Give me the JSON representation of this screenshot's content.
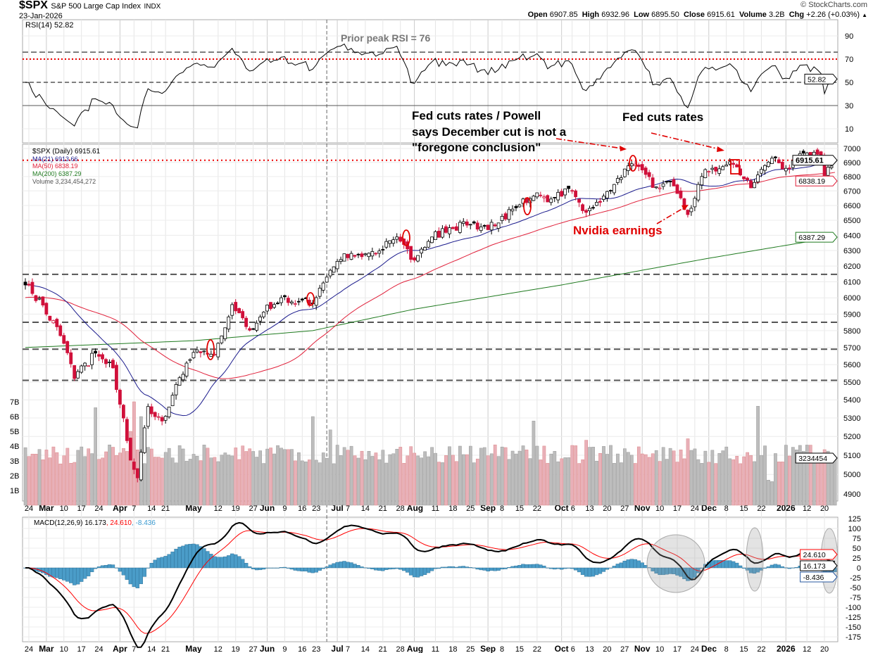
{
  "header": {
    "symbol": "$SPX",
    "name": "S&P 500 Large Cap Index",
    "exchange": "INDX",
    "date": "23-Jan-2026",
    "copyright": "© StockCharts.com",
    "ohlc": {
      "open_label": "Open",
      "open": "6907.85",
      "high_label": "High",
      "high": "6932.96",
      "low_label": "Low",
      "low": "6895.50",
      "close_label": "Close",
      "close": "6915.61",
      "volume_label": "Volume",
      "volume": "3.2B",
      "chg_label": "Chg",
      "chg": "+2.26 (+0.03%)",
      "chg_arrow": "▲"
    }
  },
  "legend": {
    "rsi": "RSI(14) 52.82",
    "price": "$SPX (Daily) 6915.61",
    "ma21": "MA(21) 6913.66",
    "ma50": "MA(50) 6838.19",
    "ma200": "MA(200) 6387.29",
    "volume": "Volume 3,234,454,272",
    "macd_main": "MACD(12,26,9) 16.173",
    "macd_signal": ", 24.610",
    "macd_hist": ", -8.436"
  },
  "value_tags": {
    "close": "6915.61",
    "ma50": "6838.19",
    "ma200": "6387.29",
    "volume": "3234454",
    "rsi": "52.82",
    "macd": "16.173",
    "signal": "24.610",
    "hist": "-8.436"
  },
  "annotations": {
    "prior_peak": "Prior peak RSI = 76",
    "fed1_line1": "Fed cuts rates / Powell",
    "fed1_line2": "says December cut is not a",
    "fed1_line3": "\"foregone conclusion\"",
    "fed2": "Fed cuts rates",
    "nvidia": "Nvidia earnings"
  },
  "colors": {
    "up": "#000000",
    "down": "#d0103a",
    "ma21": "#1a1a8c",
    "ma50": "#e0203a",
    "ma200": "#1f7a1f",
    "vol_up": "#bdbdbd",
    "vol_down": "#e8b0b8",
    "macd": "#000000",
    "signal": "#ff0000",
    "hist": "#4a9cc8",
    "annot": "#e00000"
  },
  "chart_data": {
    "type": "candlestick",
    "title": "$SPX S&P 500 Large Cap Index",
    "start": "2025-02-21",
    "end": "2026-01-23",
    "holidays": [
      "2025-04-18",
      "2025-05-26",
      "2025-06-19",
      "2025-07-04",
      "2025-09-01",
      "2025-11-27",
      "2025-12-25",
      "2026-01-01",
      "2026-01-19"
    ],
    "weekly_closes": [
      [
        "2025-02-21",
        6080
      ],
      [
        "2025-02-28",
        5955
      ],
      [
        "2025-03-07",
        5770
      ],
      [
        "2025-03-13",
        5520
      ],
      [
        "2025-03-21",
        5667
      ],
      [
        "2025-03-28",
        5581
      ],
      [
        "2025-04-04",
        5074
      ],
      [
        "2025-04-08",
        4982
      ],
      [
        "2025-04-11",
        5363
      ],
      [
        "2025-04-17",
        5283
      ],
      [
        "2025-04-25",
        5525
      ],
      [
        "2025-05-02",
        5686
      ],
      [
        "2025-05-09",
        5660
      ],
      [
        "2025-05-16",
        5958
      ],
      [
        "2025-05-23",
        5803
      ],
      [
        "2025-05-30",
        5912
      ],
      [
        "2025-06-06",
        6000
      ],
      [
        "2025-06-13",
        5977
      ],
      [
        "2025-06-20",
        5967
      ],
      [
        "2025-06-27",
        6173
      ],
      [
        "2025-07-03",
        6279
      ],
      [
        "2025-07-11",
        6260
      ],
      [
        "2025-07-18",
        6297
      ],
      [
        "2025-07-25",
        6389
      ],
      [
        "2025-08-01",
        6238
      ],
      [
        "2025-08-08",
        6389
      ],
      [
        "2025-08-15",
        6450
      ],
      [
        "2025-08-22",
        6467
      ],
      [
        "2025-08-29",
        6460
      ],
      [
        "2025-09-05",
        6482
      ],
      [
        "2025-09-12",
        6584
      ],
      [
        "2025-09-19",
        6664
      ],
      [
        "2025-09-26",
        6644
      ],
      [
        "2025-10-03",
        6716
      ],
      [
        "2025-10-10",
        6553
      ],
      [
        "2025-10-17",
        6664
      ],
      [
        "2025-10-24",
        6792
      ],
      [
        "2025-10-29",
        6890
      ],
      [
        "2025-11-07",
        6728
      ],
      [
        "2025-11-14",
        6734
      ],
      [
        "2025-11-20",
        6538
      ],
      [
        "2025-11-28",
        6849
      ],
      [
        "2025-12-05",
        6870
      ],
      [
        "2025-12-10",
        6886
      ],
      [
        "2025-12-17",
        6721
      ],
      [
        "2025-12-26",
        6930
      ],
      [
        "2026-01-02",
        6858
      ],
      [
        "2026-01-09",
        6966
      ],
      [
        "2026-01-16",
        6940
      ],
      [
        "2026-01-20",
        6797
      ],
      [
        "2026-01-23",
        6915.61
      ]
    ],
    "last_ohlc": {
      "open": 6907.85,
      "high": 6932.96,
      "low": 6895.5,
      "close": 6915.61,
      "volume_B": 3.23
    },
    "ma200_anchors": [
      [
        "2025-02-21",
        5700
      ],
      [
        "2025-05-01",
        5740
      ],
      [
        "2025-06-20",
        5800
      ],
      [
        "2025-08-01",
        5930
      ],
      [
        "2025-10-01",
        6080
      ],
      [
        "2025-12-01",
        6250
      ],
      [
        "2026-01-23",
        6387.29
      ]
    ],
    "volume_spikes_B": [
      [
        "2025-03-21",
        6.6
      ],
      [
        "2025-04-04",
        5.0
      ],
      [
        "2025-04-07",
        7.0
      ],
      [
        "2025-04-09",
        6.0
      ],
      [
        "2025-06-20",
        6.0
      ],
      [
        "2025-06-27",
        5.1
      ],
      [
        "2025-09-19",
        5.7
      ],
      [
        "2025-10-10",
        4.4
      ],
      [
        "2025-11-20",
        4.5
      ],
      [
        "2025-12-19",
        6.7
      ],
      [
        "2025-12-24",
        1.7
      ],
      [
        "2025-12-26",
        1.6
      ]
    ],
    "price_axis": {
      "scale": "log",
      "min": 4800,
      "max": 7100,
      "ticks": [
        4900,
        5000,
        5100,
        5200,
        5300,
        5400,
        5500,
        5600,
        5700,
        5800,
        5900,
        6000,
        6100,
        6200,
        6300,
        6400,
        6500,
        6600,
        6700,
        6800,
        6900,
        7000
      ]
    },
    "volume_axis": {
      "ticks": [
        "1B",
        "2B",
        "3B",
        "4B",
        "5B",
        "6B",
        "7B"
      ]
    },
    "rsi_axis": {
      "ticks": [
        10,
        30,
        50,
        70,
        90
      ],
      "lines": {
        "prior_peak": 76,
        "overbought": 70,
        "mid": 50,
        "oversold": 30
      }
    },
    "macd_axis": {
      "ticks": [
        125,
        100,
        75,
        50,
        25,
        0,
        -25,
        -50,
        -75,
        -100,
        -125,
        -150,
        -175
      ]
    },
    "support_levels": [
      6147,
      5850,
      5690,
      5510
    ],
    "current_level": 6915.61,
    "marker_date": "2025-06-26",
    "x_labels": [
      [
        "24",
        "2025-02-24",
        0
      ],
      [
        "Mar",
        "2025-03-03",
        1
      ],
      [
        "10",
        "2025-03-10",
        0
      ],
      [
        "17",
        "2025-03-17",
        0
      ],
      [
        "24",
        "2025-03-24",
        0
      ],
      [
        "Apr",
        "2025-04-01",
        1
      ],
      [
        "7",
        "2025-04-07",
        0
      ],
      [
        "14",
        "2025-04-14",
        0
      ],
      [
        "21",
        "2025-04-21",
        0
      ],
      [
        "May",
        "2025-05-01",
        1
      ],
      [
        "12",
        "2025-05-12",
        0
      ],
      [
        "19",
        "2025-05-19",
        0
      ],
      [
        "27",
        "2025-05-27",
        0
      ],
      [
        "Jun",
        "2025-06-02",
        1
      ],
      [
        "9",
        "2025-06-09",
        0
      ],
      [
        "16",
        "2025-06-16",
        0
      ],
      [
        "23",
        "2025-06-23",
        0
      ],
      [
        "Jul",
        "2025-07-01",
        1
      ],
      [
        "7",
        "2025-07-07",
        0
      ],
      [
        "14",
        "2025-07-14",
        0
      ],
      [
        "21",
        "2025-07-21",
        0
      ],
      [
        "28",
        "2025-07-28",
        0
      ],
      [
        "Aug",
        "2025-08-01",
        1
      ],
      [
        "11",
        "2025-08-11",
        0
      ],
      [
        "18",
        "2025-08-18",
        0
      ],
      [
        "25",
        "2025-08-25",
        0
      ],
      [
        "Sep",
        "2025-09-02",
        1
      ],
      [
        "8",
        "2025-09-08",
        0
      ],
      [
        "15",
        "2025-09-15",
        0
      ],
      [
        "22",
        "2025-09-22",
        0
      ],
      [
        "Oct",
        "2025-10-01",
        1
      ],
      [
        "6",
        "2025-10-06",
        0
      ],
      [
        "13",
        "2025-10-13",
        0
      ],
      [
        "20",
        "2025-10-20",
        0
      ],
      [
        "27",
        "2025-10-27",
        0
      ],
      [
        "Nov",
        "2025-11-03",
        1
      ],
      [
        "10",
        "2025-11-10",
        0
      ],
      [
        "17",
        "2025-11-17",
        0
      ],
      [
        "24",
        "2025-11-24",
        0
      ],
      [
        "Dec",
        "2025-12-01",
        1
      ],
      [
        "8",
        "2025-12-08",
        0
      ],
      [
        "15",
        "2025-12-15",
        0
      ],
      [
        "22",
        "2025-12-22",
        0
      ],
      [
        "2026",
        "2026-01-02",
        1
      ],
      [
        "12",
        "2026-01-12",
        0
      ],
      [
        "20",
        "2026-01-20",
        0
      ]
    ]
  }
}
